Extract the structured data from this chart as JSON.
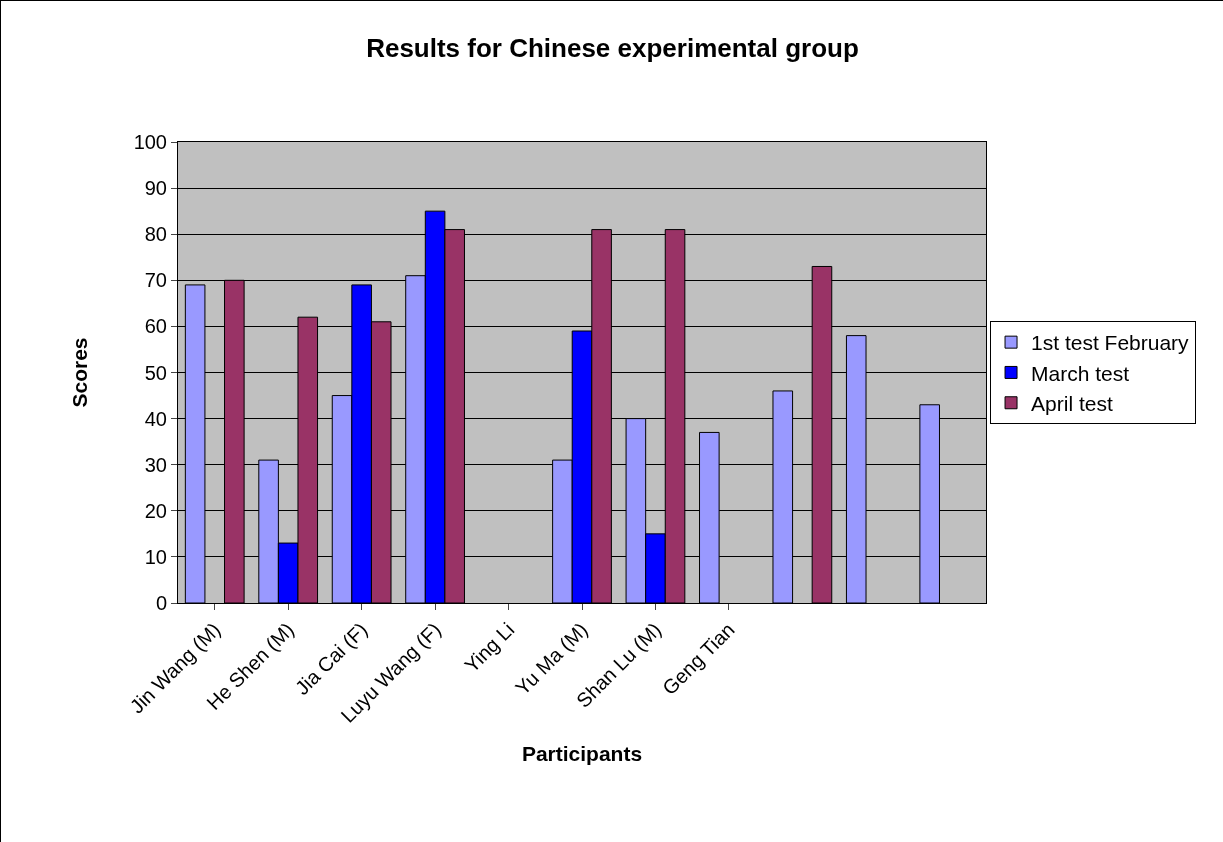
{
  "chart_data": {
    "type": "bar",
    "title": "Results for Chinese experimental group",
    "xlabel": "Participants",
    "ylabel": "Scores",
    "categories": [
      "Jin Wang (M)",
      "He Shen (M)",
      "Jia Cai (F)",
      "Luyu Wang (F)",
      "Ying Li",
      "Yu Ma (M)",
      "Shan Lu (M)",
      "Geng Tian",
      null,
      null,
      null
    ],
    "series": [
      {
        "name": "1st test February",
        "color": "#9999ff",
        "values": [
          69,
          31,
          45,
          71,
          null,
          31,
          40,
          37,
          46,
          58,
          43
        ]
      },
      {
        "name": "March test",
        "color": "#0000ff",
        "values": [
          null,
          13,
          69,
          85,
          null,
          59,
          15,
          null,
          null,
          null,
          null
        ]
      },
      {
        "name": "April test",
        "color": "#993366",
        "values": [
          70,
          62,
          61,
          81,
          null,
          81,
          81,
          null,
          73,
          null,
          null
        ]
      }
    ],
    "ylim": [
      0,
      100
    ],
    "yticks": [
      0,
      10,
      20,
      30,
      40,
      50,
      60,
      70,
      80,
      90,
      100
    ],
    "grid": "y",
    "legend": "right"
  }
}
